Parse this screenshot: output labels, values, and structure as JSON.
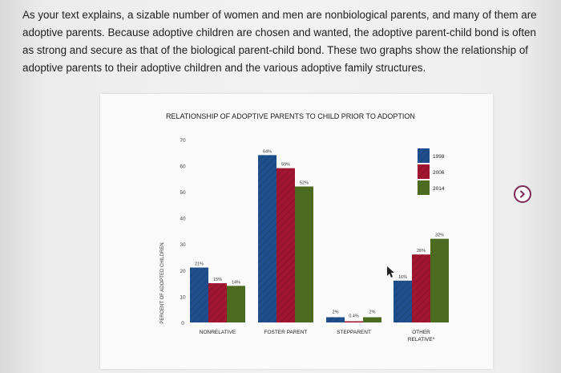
{
  "intro_text": "As your text explains, a sizable number of women and men are nonbiological parents, and many of them are adoptive parents. Because adoptive children are chosen and wanted, the adoptive parent-child bond is often as strong and secure as that of the biological parent-child bond. These two graphs show the relationship of adoptive parents to their adoptive children and the various adoptive family structures.",
  "next_button_icon": "chevron-right-icon",
  "colors": {
    "1998": "#1f4e8c",
    "2006": "#a01530",
    "2014": "#4d6b20",
    "accent": "#7a2a57"
  },
  "chart_data": {
    "type": "bar",
    "title": "RELATIONSHIP OF ADOPTIVE PARENTS TO CHILD PRIOR TO ADOPTION",
    "ylabel": "PERCENT OF ADOPTED CHILDREN",
    "ylim": [
      0,
      70
    ],
    "yticks": [
      "0",
      "10",
      "20",
      "30",
      "40",
      "50",
      "60",
      "70"
    ],
    "categories": [
      "NONRELATIVE",
      "FOSTER PARENT",
      "STEPPARENT",
      "OTHER RELATIVE*"
    ],
    "series": [
      {
        "name": "1998",
        "values": [
          21,
          64,
          2,
          16
        ],
        "labels": [
          "21%",
          "64%",
          "2%",
          "16%"
        ]
      },
      {
        "name": "2006",
        "values": [
          15,
          59,
          0.4,
          26
        ],
        "labels": [
          "15%",
          "59%",
          "0.4%",
          "26%"
        ]
      },
      {
        "name": "2014",
        "values": [
          14,
          52,
          2,
          32
        ],
        "labels": [
          "14%",
          "52%",
          "2%",
          "32%"
        ]
      }
    ],
    "legend": "top-right"
  }
}
